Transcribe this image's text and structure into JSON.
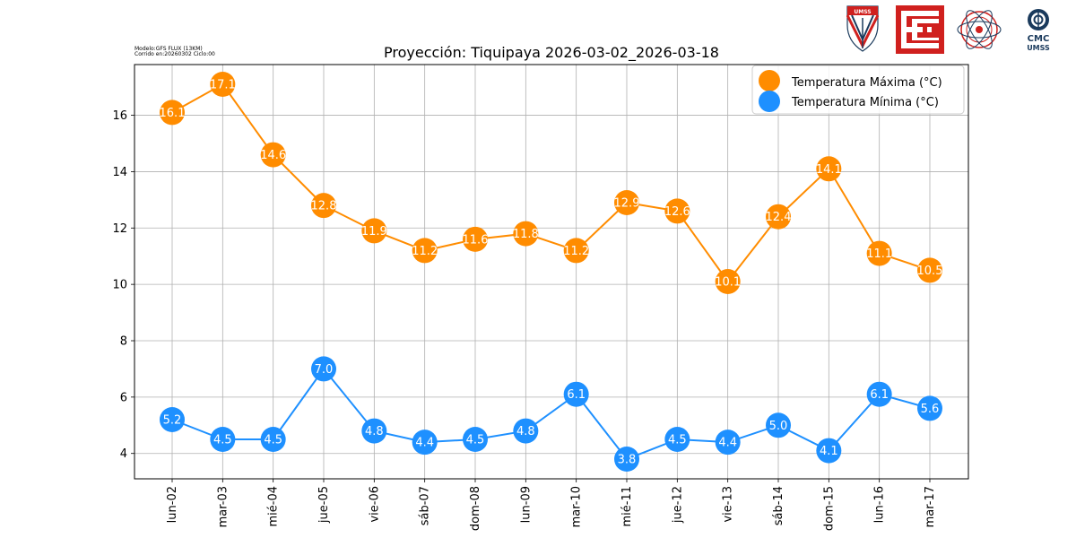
{
  "meta": {
    "model_line": "Modelo:GFS FLUX (13KM)",
    "run_line": "Corrido en:20260302 Ciclo:00"
  },
  "logos": {
    "umss_shield": "UMSS",
    "cmc_name": "CMC",
    "cmc_org": "UMSS"
  },
  "colors": {
    "max": "#ff8c00",
    "min": "#1e90ff",
    "grid": "#b0b0b0",
    "axis": "#000000",
    "logo_red": "#d0201e",
    "logo_navy": "#1a3a5c"
  },
  "chart_data": {
    "type": "line",
    "title": "Proyección: Tiquipaya 2026-03-02_2026-03-18",
    "xlabel": "",
    "ylabel": "",
    "categories": [
      "lun-02",
      "mar-03",
      "mié-04",
      "jue-05",
      "vie-06",
      "sáb-07",
      "dom-08",
      "lun-09",
      "mar-10",
      "mié-11",
      "jue-12",
      "vie-13",
      "sáb-14",
      "dom-15",
      "lun-16",
      "mar-17"
    ],
    "series": [
      {
        "name": "Temperatura Máxima  (°C)",
        "color": "#ff8c00",
        "values": [
          16.1,
          17.1,
          14.6,
          12.8,
          11.9,
          11.2,
          11.6,
          11.8,
          11.2,
          12.9,
          12.6,
          10.1,
          12.4,
          14.1,
          11.1,
          10.5
        ],
        "labels": [
          "16.1",
          "17.1",
          "14.6",
          "12.8",
          "11.9",
          "11.2",
          "11.6",
          "11.8",
          "11.2",
          "12.9",
          "12.6",
          "10.1",
          "12.4",
          "14.1",
          "11.1",
          "10.5"
        ]
      },
      {
        "name": "Temperatura Mínima  (°C)",
        "color": "#1e90ff",
        "values": [
          5.2,
          4.5,
          4.5,
          7.0,
          4.8,
          4.4,
          4.5,
          4.8,
          6.1,
          3.8,
          4.5,
          4.4,
          5.0,
          4.1,
          6.1,
          5.6
        ],
        "labels": [
          "5.2",
          "4.5",
          "4.5",
          "7.0",
          "4.8",
          "4.4",
          "4.5",
          "4.8",
          "6.1",
          "3.8",
          "4.5",
          "4.4",
          "5.0",
          "4.1",
          "6.1",
          "5.6"
        ]
      }
    ],
    "ylim": [
      3.1,
      17.8
    ],
    "yticks": [
      "4",
      "6",
      "8",
      "10",
      "12",
      "14",
      "16"
    ],
    "grid": true,
    "legend_position": "top-right"
  }
}
